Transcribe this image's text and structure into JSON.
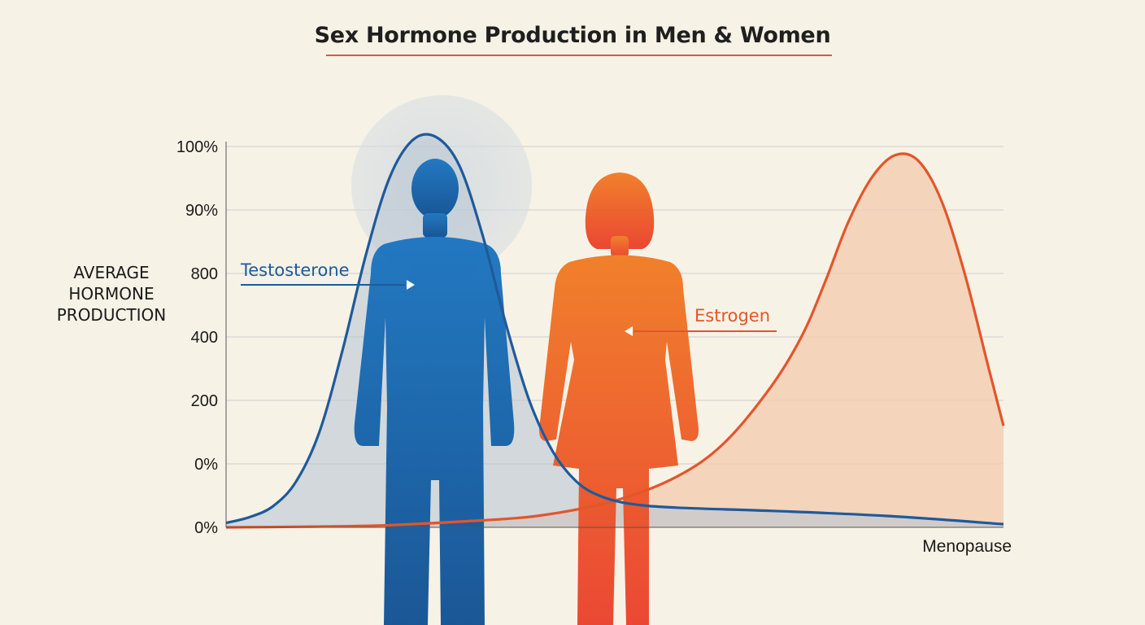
{
  "chart_data": {
    "type": "area",
    "title": "Sex Hormone Production in Men & Women",
    "ylabel": "AVERAGE\nHORMONE\nPRODUCTION",
    "xlabel": "Menopause",
    "ytick_labels": [
      "0%",
      "0%",
      "200",
      "400",
      "800",
      "90%",
      "100%"
    ],
    "ylim": [
      0,
      6
    ],
    "xlim": [
      0,
      100
    ],
    "grid": true,
    "series": [
      {
        "name": "Testosterone",
        "color": "#1f5a9a",
        "fill": "#c6d2dc",
        "points": [
          [
            0,
            0.07
          ],
          [
            3,
            0.16
          ],
          [
            6,
            0.33
          ],
          [
            9,
            0.72
          ],
          [
            12,
            1.5
          ],
          [
            15,
            2.8
          ],
          [
            18,
            4.3
          ],
          [
            21,
            5.5
          ],
          [
            24,
            6.1
          ],
          [
            27,
            6.15
          ],
          [
            30,
            5.7
          ],
          [
            33,
            4.6
          ],
          [
            36,
            3.2
          ],
          [
            39,
            2.0
          ],
          [
            42,
            1.2
          ],
          [
            45,
            0.73
          ],
          [
            48,
            0.5
          ],
          [
            52,
            0.37
          ],
          [
            58,
            0.31
          ],
          [
            70,
            0.26
          ],
          [
            85,
            0.18
          ],
          [
            100,
            0.05
          ]
        ]
      },
      {
        "name": "Estrogen",
        "color": "#e2562b",
        "fill": "#f3c9ac",
        "points": [
          [
            0,
            0.0
          ],
          [
            10,
            0.01
          ],
          [
            20,
            0.03
          ],
          [
            30,
            0.09
          ],
          [
            40,
            0.18
          ],
          [
            50,
            0.42
          ],
          [
            58,
            0.8
          ],
          [
            64,
            1.32
          ],
          [
            70,
            2.2
          ],
          [
            74,
            3.0
          ],
          [
            77,
            3.85
          ],
          [
            80,
            4.8
          ],
          [
            83,
            5.5
          ],
          [
            86,
            5.86
          ],
          [
            89,
            5.78
          ],
          [
            92,
            5.15
          ],
          [
            95,
            4.0
          ],
          [
            98,
            2.55
          ],
          [
            100,
            1.6
          ]
        ]
      }
    ]
  }
}
